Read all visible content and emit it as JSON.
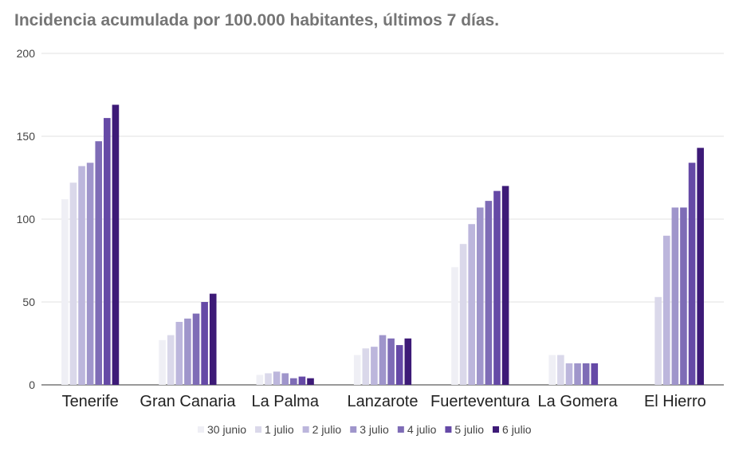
{
  "chart_data": {
    "type": "bar",
    "title": "Incidencia acumulada por 100.000 habitantes, últimos 7 días.",
    "categories": [
      "Tenerife",
      "Gran Canaria",
      "La Palma",
      "Lanzarote",
      "Fuerteventura",
      "La Gomera",
      "El Hierro"
    ],
    "ylim": [
      0,
      200
    ],
    "yticks": [
      0,
      50,
      100,
      150,
      200
    ],
    "grid": true,
    "legend_position": "bottom",
    "series": [
      {
        "name": "30 junio",
        "color": "#efeff5",
        "values": [
          112,
          27,
          6,
          18,
          71,
          18,
          0
        ]
      },
      {
        "name": "1 julio",
        "color": "#dad8ea",
        "values": [
          122,
          30,
          7,
          22,
          85,
          18,
          53
        ]
      },
      {
        "name": "2 julio",
        "color": "#bcb6dc",
        "values": [
          132,
          38,
          8,
          23,
          97,
          13,
          90
        ]
      },
      {
        "name": "3 julio",
        "color": "#9f95cb",
        "values": [
          134,
          40,
          7,
          30,
          107,
          13,
          107
        ]
      },
      {
        "name": "4 julio",
        "color": "#7e6cb6",
        "values": [
          147,
          43,
          4,
          28,
          111,
          13,
          107
        ]
      },
      {
        "name": "5 julio",
        "color": "#6549a6",
        "values": [
          161,
          50,
          5,
          24,
          117,
          13,
          134
        ]
      },
      {
        "name": "6 julio",
        "color": "#3d1a77",
        "values": [
          169,
          55,
          4,
          28,
          120,
          0,
          143
        ]
      }
    ]
  }
}
